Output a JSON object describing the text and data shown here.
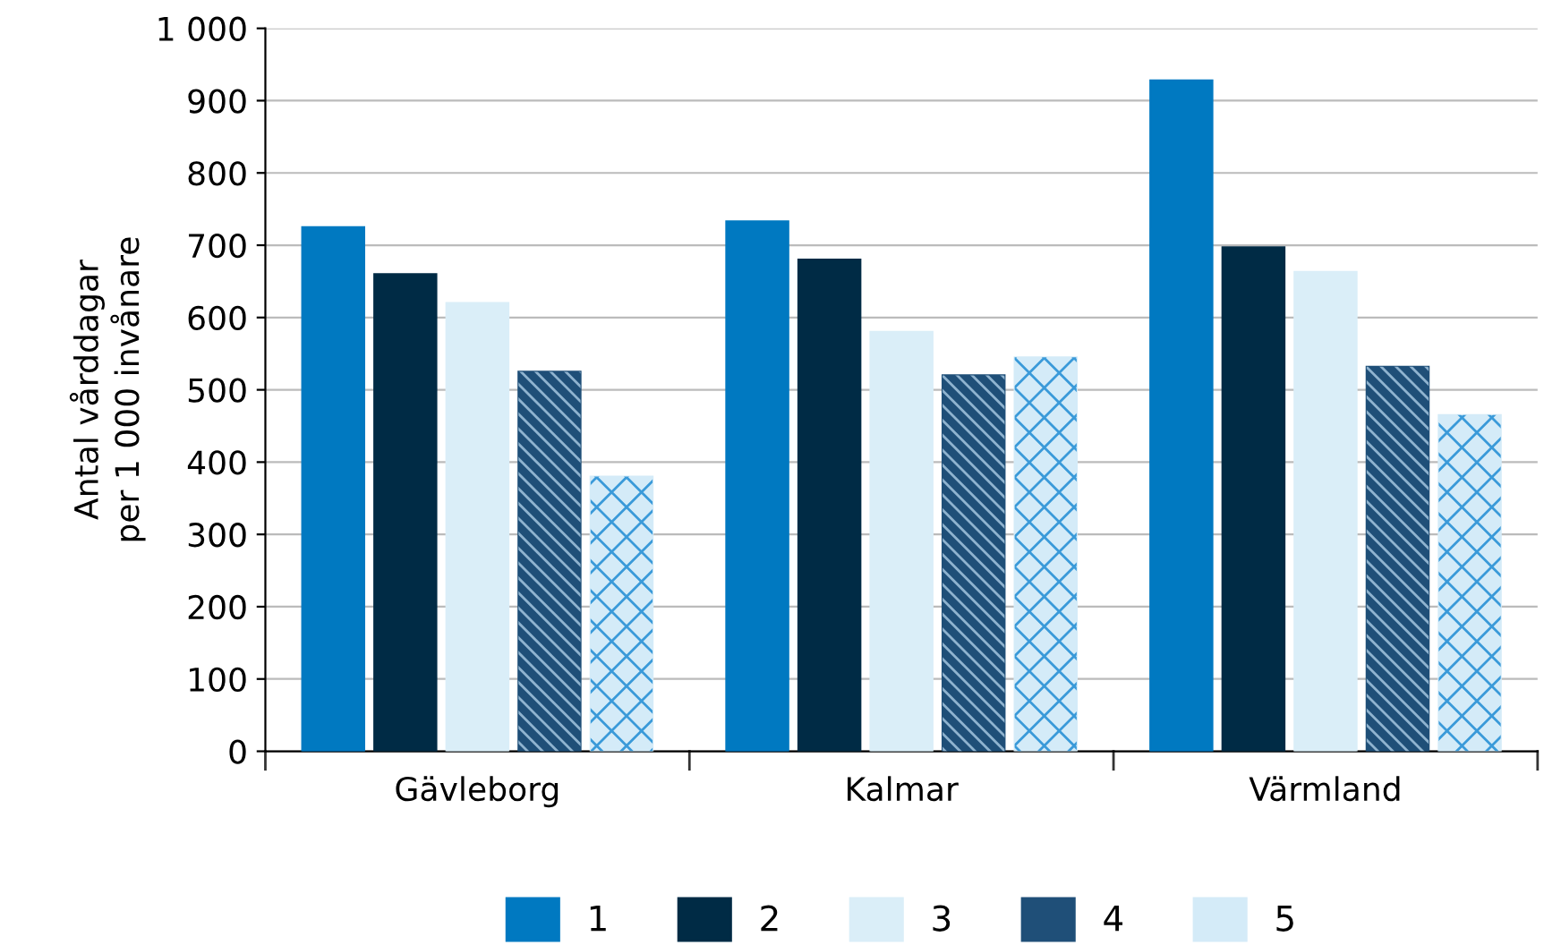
{
  "chart_data": {
    "type": "bar",
    "ylabel": "Antal vårddagar\nper 1 000 invånare",
    "categories": [
      "Gävleborg",
      "Kalmar",
      "Värmland"
    ],
    "series": [
      {
        "name": "1",
        "color": "#0079c1",
        "values": [
          725,
          733,
          928
        ]
      },
      {
        "name": "2",
        "color": "#002b45",
        "values": [
          660,
          680,
          697
        ]
      },
      {
        "name": "3",
        "color": "#daeef8",
        "values": [
          620,
          580,
          663
        ]
      },
      {
        "name": "4",
        "color": "#1f4f78",
        "values": [
          525,
          520,
          532
        ]
      },
      {
        "name": "5",
        "color": "#d4ebf8",
        "values": [
          380,
          545,
          465
        ]
      }
    ],
    "ylim": [
      0,
      1000
    ],
    "yticks": [
      0,
      100,
      200,
      300,
      400,
      500,
      600,
      700,
      800,
      900,
      {
        "value": 1000,
        "label": "1 000"
      }
    ],
    "grid": "y",
    "legend": "bottom"
  }
}
